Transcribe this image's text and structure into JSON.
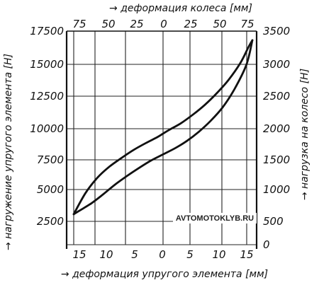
{
  "chart_data": {
    "type": "line",
    "title": "",
    "top_axis": {
      "label": "деформация колеса [мм]",
      "ticks": [
        "75",
        "50",
        "25",
        "0",
        "25",
        "50",
        "75"
      ]
    },
    "bottom_axis": {
      "label": "деформация упругого элемента [мм]",
      "ticks": [
        "15",
        "10",
        "5",
        "0",
        "5",
        "10",
        "15"
      ]
    },
    "left_axis": {
      "label": "нагружение упругого элемента [Н]",
      "ticks": [
        "17500",
        "15000",
        "12500",
        "10000",
        "7500",
        "5000",
        "2500"
      ],
      "ylim": [
        0,
        17500
      ]
    },
    "right_axis": {
      "label": "нагрузка на колесо [Н]",
      "ticks": [
        "3500",
        "3000",
        "2500",
        "2000",
        "1500",
        "1000",
        "500",
        "0"
      ],
      "ylim": [
        0,
        3500
      ]
    },
    "x_units": "wheel deformation, mm (signed, -75..75)",
    "xlim": [
      -75,
      75
    ],
    "grid": true,
    "series": [
      {
        "x": [
          -75,
          -65,
          -55,
          -45,
          -35,
          -25,
          -15,
          -5,
          0,
          5,
          15,
          25,
          35,
          45,
          55,
          65,
          72,
          75
        ],
        "y": [
          500,
          850,
          1100,
          1280,
          1420,
          1550,
          1660,
          1760,
          1820,
          1880,
          1990,
          2130,
          2290,
          2480,
          2700,
          2980,
          3250,
          3350
        ]
      },
      {
        "x": [
          -75,
          -70,
          -60,
          -50,
          -40,
          -30,
          -20,
          -10,
          0,
          10,
          20,
          30,
          40,
          50,
          60,
          70,
          75
        ],
        "y": [
          500,
          560,
          680,
          830,
          990,
          1130,
          1260,
          1380,
          1480,
          1580,
          1700,
          1850,
          2030,
          2250,
          2550,
          2950,
          3350
        ]
      }
    ],
    "watermark": "AVTOMOTOKLYB.RU"
  }
}
